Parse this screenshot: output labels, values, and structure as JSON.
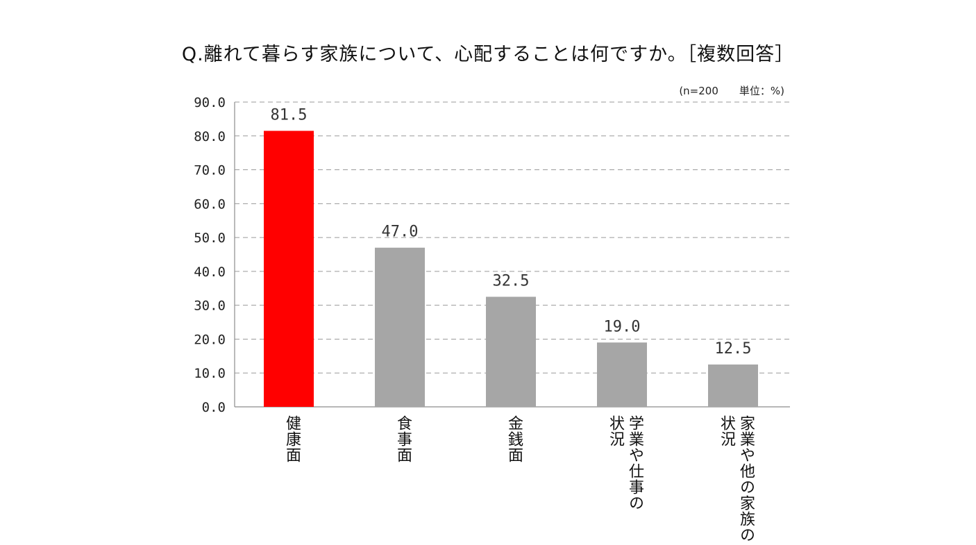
{
  "chart_data": {
    "type": "bar",
    "title": "Q.離れて暮らす家族について、心配することは何ですか。［複数回答］",
    "note": "(n=200　　単位：%)",
    "categories": [
      "健康面",
      "食事面",
      "金銭面",
      "学業や仕事の状況",
      "家業や他の家族の状況"
    ],
    "category_lines": [
      [
        "健康面"
      ],
      [
        "食事面"
      ],
      [
        "金銭面"
      ],
      [
        "学業や仕事の",
        "状況"
      ],
      [
        "家業や他の家族の",
        "状況"
      ]
    ],
    "values": [
      81.5,
      47.0,
      32.5,
      19.0,
      12.5
    ],
    "value_labels": [
      "81.5",
      "47.0",
      "32.5",
      "19.0",
      "12.5"
    ],
    "bar_colors": [
      "#ff0000",
      "#a6a6a6",
      "#a6a6a6",
      "#a6a6a6",
      "#a6a6a6"
    ],
    "ylim": [
      0,
      90
    ],
    "yticks": [
      "0.0",
      "10.0",
      "20.0",
      "30.0",
      "40.0",
      "50.0",
      "60.0",
      "70.0",
      "80.0",
      "90.0"
    ],
    "grid": "dashed horizontal",
    "xlabel": "",
    "ylabel": ""
  }
}
